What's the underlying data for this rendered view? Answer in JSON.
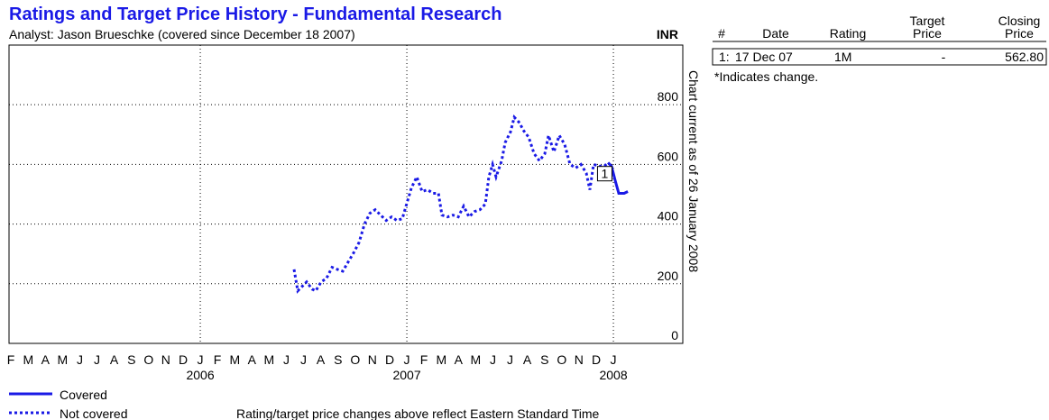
{
  "title": "Ratings and Target Price History - Fundamental Research",
  "chart_data": {
    "type": "line",
    "subtitle": "Analyst: Jason Brueschke (covered since December 18 2007)",
    "currency": "INR",
    "side_note": "Chart current as of 26 January 2008",
    "footnote": "Rating/target price changes above reflect Eastern Standard Time",
    "xlim": [
      2005.074,
      2008.336
    ],
    "ylim": [
      0,
      1018
    ],
    "yticks": [
      0,
      200,
      400,
      600,
      800
    ],
    "xticks": [
      {
        "value": 2005.083,
        "label": "F"
      },
      {
        "value": 2005.167,
        "label": "M"
      },
      {
        "value": 2005.25,
        "label": "A"
      },
      {
        "value": 2005.333,
        "label": "M"
      },
      {
        "value": 2005.417,
        "label": "J"
      },
      {
        "value": 2005.5,
        "label": "J"
      },
      {
        "value": 2005.583,
        "label": "A"
      },
      {
        "value": 2005.667,
        "label": "S"
      },
      {
        "value": 2005.75,
        "label": "O"
      },
      {
        "value": 2005.833,
        "label": "N"
      },
      {
        "value": 2005.917,
        "label": "D"
      },
      {
        "value": 2006,
        "label": "J"
      },
      {
        "value": 2006.083,
        "label": "F"
      },
      {
        "value": 2006.167,
        "label": "M"
      },
      {
        "value": 2006.25,
        "label": "A"
      },
      {
        "value": 2006.333,
        "label": "M"
      },
      {
        "value": 2006.417,
        "label": "J"
      },
      {
        "value": 2006.5,
        "label": "J"
      },
      {
        "value": 2006.583,
        "label": "A"
      },
      {
        "value": 2006.667,
        "label": "S"
      },
      {
        "value": 2006.75,
        "label": "O"
      },
      {
        "value": 2006.833,
        "label": "N"
      },
      {
        "value": 2006.917,
        "label": "D"
      },
      {
        "value": 2007,
        "label": "J"
      },
      {
        "value": 2007.083,
        "label": "F"
      },
      {
        "value": 2007.167,
        "label": "M"
      },
      {
        "value": 2007.25,
        "label": "A"
      },
      {
        "value": 2007.333,
        "label": "M"
      },
      {
        "value": 2007.417,
        "label": "J"
      },
      {
        "value": 2007.5,
        "label": "J"
      },
      {
        "value": 2007.583,
        "label": "A"
      },
      {
        "value": 2007.667,
        "label": "S"
      },
      {
        "value": 2007.75,
        "label": "O"
      },
      {
        "value": 2007.833,
        "label": "N"
      },
      {
        "value": 2007.917,
        "label": "D"
      },
      {
        "value": 2008,
        "label": "J"
      }
    ],
    "year_ticks": [
      2006,
      2007,
      2008
    ],
    "grid": true,
    "series": [
      {
        "name": "Covered",
        "color": "#1a1ae6",
        "style": "solid",
        "x": [
          2007.974,
          2007.991,
          2008.009,
          2008.026,
          2008.052,
          2008.07
        ],
        "values": [
          606,
          594,
          545,
          503,
          503,
          509
        ]
      },
      {
        "name": "Not covered",
        "color": "#1a1ae6",
        "style": "dotted",
        "x": [
          2006.454,
          2006.472,
          2006.489,
          2006.515,
          2006.541,
          2006.559,
          2006.585,
          2006.611,
          2006.638,
          2006.664,
          2006.69,
          2006.716,
          2006.742,
          2006.769,
          2006.795,
          2006.821,
          2006.847,
          2006.873,
          2006.9,
          2006.926,
          2006.952,
          2006.978,
          2007.004,
          2007.022,
          2007.048,
          2007.074,
          2007.1,
          2007.127,
          2007.153,
          2007.17,
          2007.197,
          2007.223,
          2007.249,
          2007.275,
          2007.301,
          2007.328,
          2007.354,
          2007.38,
          2007.397,
          2007.415,
          2007.432,
          2007.459,
          2007.476,
          2007.502,
          2007.52,
          2007.546,
          2007.563,
          2007.59,
          2007.616,
          2007.642,
          2007.668,
          2007.686,
          2007.712,
          2007.738,
          2007.764,
          2007.79,
          2007.817,
          2007.843,
          2007.869,
          2007.886,
          2007.904,
          2007.93,
          2007.956,
          2007.974
        ],
        "values": [
          248,
          176,
          188,
          206,
          182,
          176,
          206,
          218,
          255,
          248,
          242,
          273,
          303,
          339,
          400,
          436,
          448,
          430,
          412,
          424,
          412,
          418,
          479,
          521,
          558,
          509,
          515,
          503,
          503,
          430,
          424,
          430,
          424,
          460,
          424,
          442,
          448,
          467,
          558,
          600,
          558,
          612,
          673,
          709,
          758,
          739,
          715,
          691,
          636,
          612,
          636,
          697,
          642,
          697,
          667,
          600,
          588,
          600,
          570,
          515,
          600,
          594,
          594,
          606
        ]
      }
    ],
    "markers": [
      {
        "label": "1",
        "x": 2007.958,
        "y": 562.8
      }
    ]
  },
  "table": {
    "headers": [
      [
        "#"
      ],
      [
        "Date"
      ],
      [
        "Rating"
      ],
      [
        "Target",
        "Price"
      ],
      [
        "Closing",
        "Price"
      ]
    ],
    "rows": [
      [
        "1:",
        "17 Dec 07",
        "1M",
        "-",
        "562.80"
      ]
    ],
    "note": "*Indicates change."
  }
}
